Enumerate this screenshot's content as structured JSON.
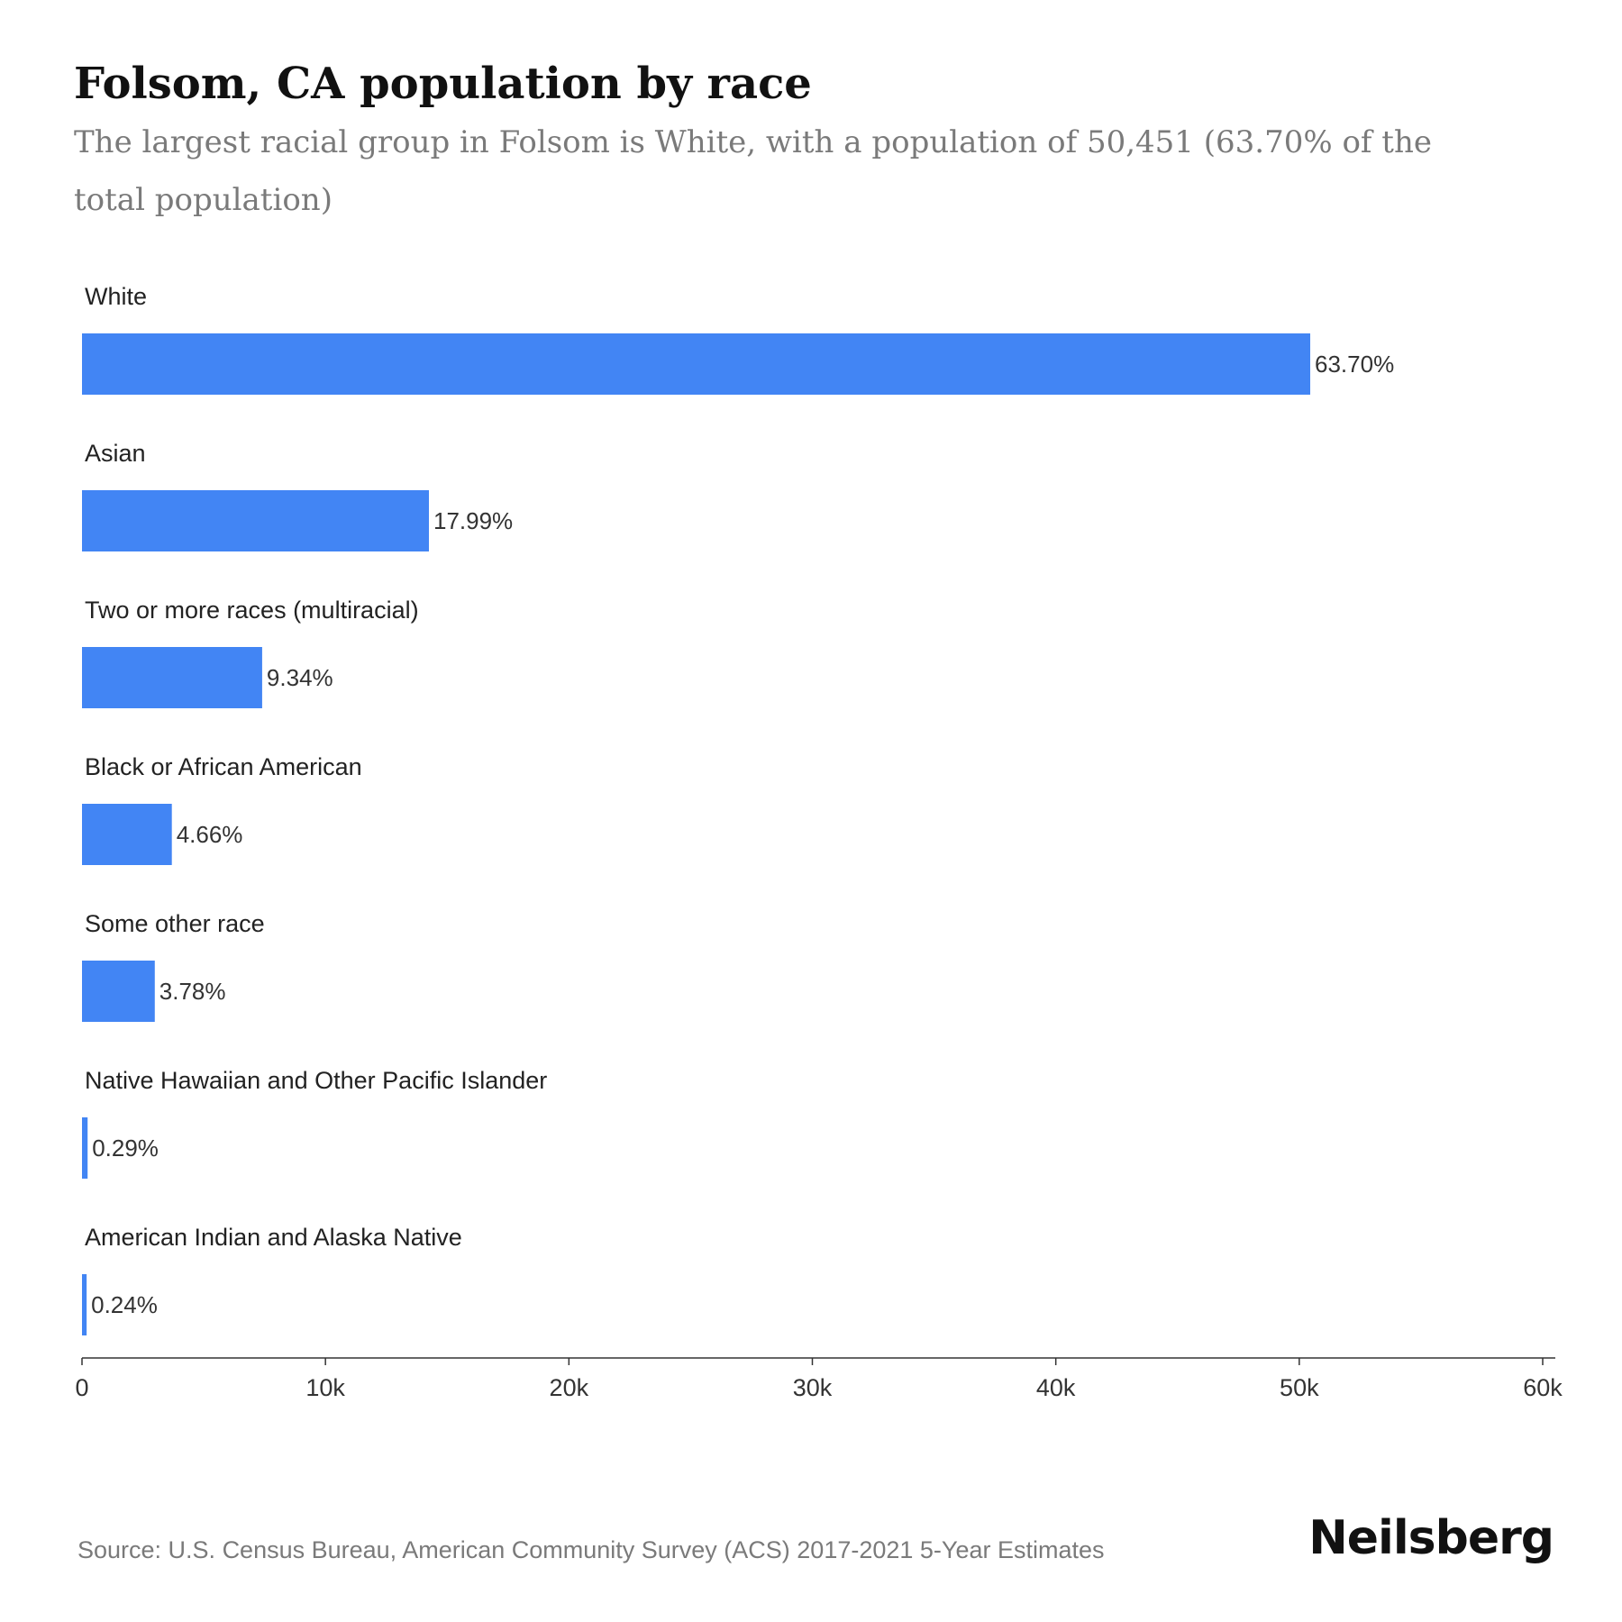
{
  "header": {
    "title": "Folsom, CA population by race",
    "subtitle": "The largest racial group in Folsom is White, with a population of 50,451 (63.70% of the total population)"
  },
  "chart_data": {
    "type": "bar",
    "orientation": "horizontal",
    "categories": [
      "White",
      "Asian",
      "Two or more races (multiracial)",
      "Black or African American",
      "Some other race",
      "Native Hawaiian and Other Pacific Islander",
      "American Indian and Alaska Native"
    ],
    "values": [
      50451,
      14250,
      7400,
      3690,
      2990,
      230,
      190
    ],
    "data_labels": [
      "63.70%",
      "17.99%",
      "9.34%",
      "4.66%",
      "3.78%",
      "0.29%",
      "0.24%"
    ],
    "xlim": [
      0,
      60000
    ],
    "x_ticks": [
      0,
      10000,
      20000,
      30000,
      40000,
      50000,
      60000
    ],
    "x_tick_labels": [
      "0",
      "10k",
      "20k",
      "30k",
      "40k",
      "50k",
      "60k"
    ],
    "xlabel": "",
    "ylabel": "",
    "grid": false,
    "legend": "none",
    "bar_color": "#4285f4"
  },
  "footer": {
    "source": "Source: U.S. Census Bureau, American Community Survey (ACS) 2017-2021 5-Year Estimates",
    "brand": "Neilsberg"
  }
}
